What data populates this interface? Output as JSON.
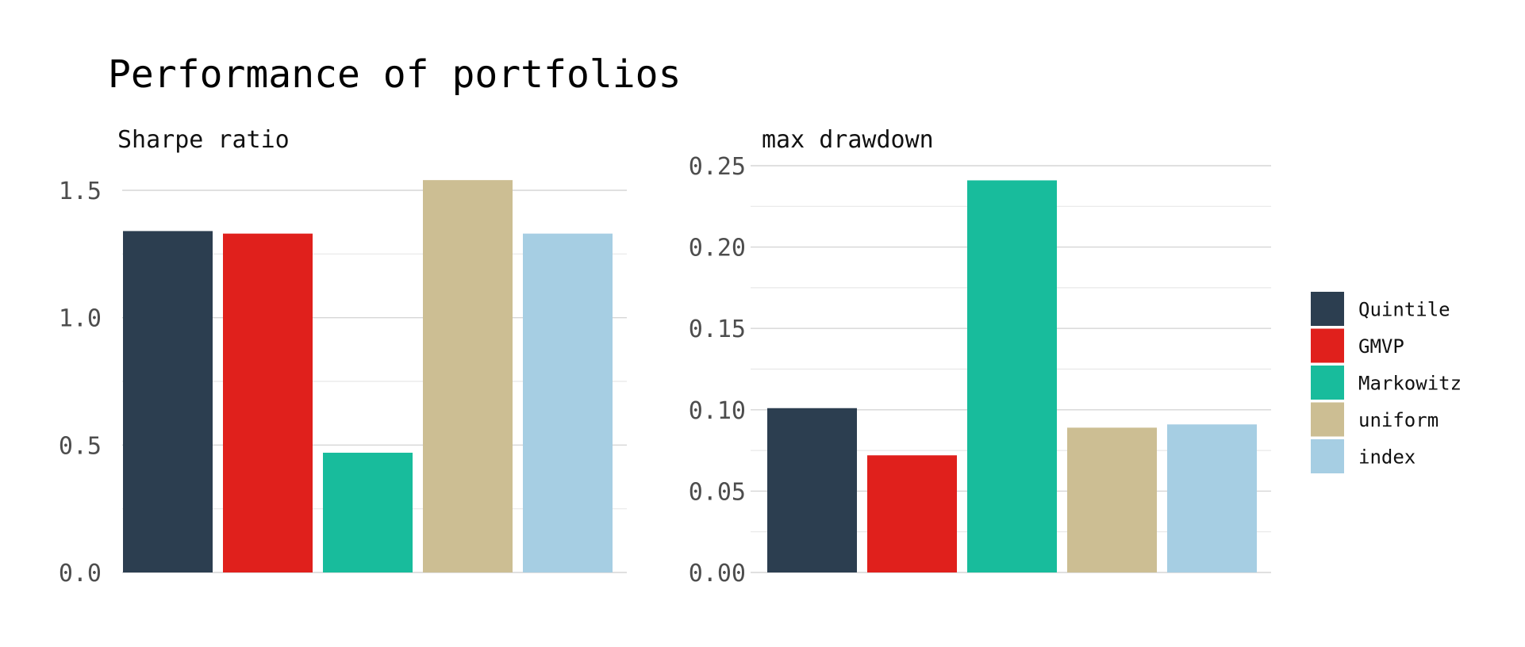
{
  "chart_data": {
    "type": "bar",
    "title": "Performance of portfolios",
    "categories": [
      "Quintile",
      "GMVP",
      "Markowitz",
      "uniform",
      "index"
    ],
    "colors": {
      "Quintile": "#2c3e50",
      "GMVP": "#e0201c",
      "Markowitz": "#18bc9c",
      "uniform": "#ccbe93",
      "index": "#a6cee3"
    },
    "panels": [
      {
        "title": "Sharpe ratio",
        "values": [
          1.34,
          1.33,
          0.47,
          1.54,
          1.33
        ],
        "ylim": [
          0,
          1.5
        ],
        "yticks": [
          "0.0",
          "0.5",
          "1.0",
          "1.5"
        ]
      },
      {
        "title": "max drawdown",
        "values": [
          0.101,
          0.072,
          0.241,
          0.089,
          0.091
        ],
        "ylim": [
          0,
          0.25
        ],
        "yticks": [
          "0.00",
          "0.05",
          "0.10",
          "0.15",
          "0.20",
          "0.25"
        ]
      }
    ],
    "legend": {
      "position": "right",
      "entries": [
        "Quintile",
        "GMVP",
        "Markowitz",
        "uniform",
        "index"
      ]
    },
    "grid": true
  }
}
